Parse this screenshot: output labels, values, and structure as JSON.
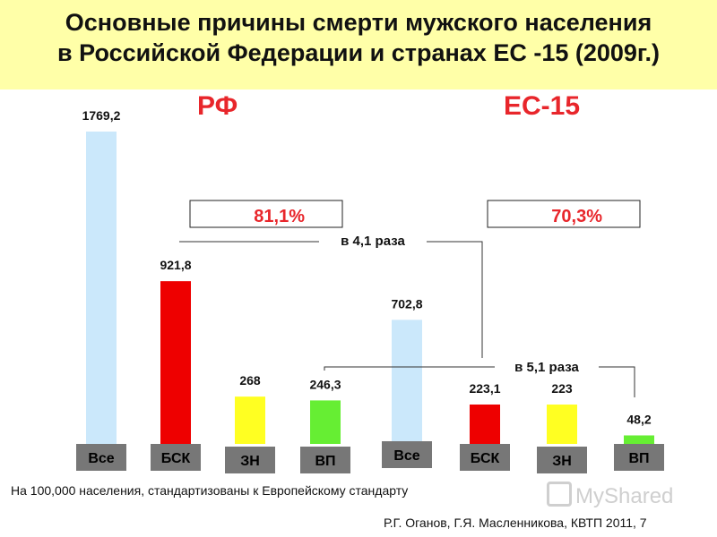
{
  "title": {
    "line1": "Основные причины смерти мужского населения",
    "line2": "в Российской Федерации и странах ЕС -15 (2009г.)"
  },
  "groups": [
    {
      "label": "РФ",
      "percent_label": "81,1%"
    },
    {
      "label": "ЕС-15",
      "percent_label": "70,3%"
    }
  ],
  "comparisons": [
    {
      "label": "в 4,1 раза"
    },
    {
      "label": "в 5,1 раза"
    }
  ],
  "colors": {
    "all_causes": "#cbe8fb",
    "bsk": "#ee0000",
    "zn": "#ffff22",
    "vp": "#66ee33",
    "category_box": "#777777",
    "group_label": "#e8262b",
    "title_bg": "#ffffa8"
  },
  "chart_data": {
    "type": "bar",
    "categories": [
      "Все",
      "БСК",
      "ЗН",
      "ВП",
      "Все",
      "БСК",
      "ЗН",
      "ВП"
    ],
    "values": [
      1769.2,
      921.8,
      268,
      246.3,
      702.8,
      223.1,
      223,
      48.2
    ],
    "value_labels": [
      "1769,2",
      "921,8",
      "268",
      "246,3",
      "702,8",
      "223,1",
      "223",
      "48,2"
    ],
    "groups": [
      "РФ",
      "РФ",
      "РФ",
      "РФ",
      "ЕС-15",
      "ЕС-15",
      "ЕС-15",
      "ЕС-15"
    ],
    "ylim": [
      0,
      1769.2
    ],
    "grid": false
  },
  "footnote": "На 100,000 населения, стандартизованы к Европейскому стандарту",
  "source": "Р.Г. Оганов, Г.Я. Масленникова, КВТП 2011, 7",
  "watermark": "MyShared"
}
